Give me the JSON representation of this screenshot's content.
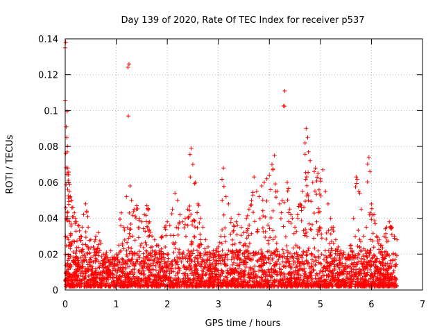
{
  "chart_data": {
    "type": "scatter",
    "title": "Day 139 of 2020, Rate Of TEC Index for receiver p537",
    "xlabel": "GPS time / hours",
    "ylabel": "ROTI / TECUs",
    "xlim": [
      0,
      7
    ],
    "ylim": [
      0,
      0.14
    ],
    "xticks": [
      0,
      1,
      2,
      3,
      4,
      5,
      6,
      7
    ],
    "yticks": [
      0,
      0.02,
      0.04,
      0.06,
      0.08,
      0.1,
      0.12,
      0.14
    ],
    "ytick_labels": [
      "0",
      "0.02",
      "0.04",
      "0.06",
      "0.08",
      "0.1",
      "0.12",
      "0.14"
    ],
    "grid": true,
    "marker": "+",
    "color": "#ff0000",
    "series": [
      {
        "name": "ROTI",
        "x": [
          0.0,
          0.01,
          0.02,
          0.03,
          0.04,
          0.05,
          0.06,
          0.08,
          0.1,
          0.12,
          0.15,
          0.18,
          0.2,
          0.22,
          0.25,
          0.28,
          0.3,
          0.33,
          0.36,
          0.4,
          0.42,
          0.45,
          0.5,
          0.55,
          0.6,
          0.65,
          0.7,
          0.75,
          0.8,
          0.85,
          0.9,
          0.95,
          1.0,
          1.05,
          1.1,
          1.15,
          1.2,
          1.25,
          1.27,
          1.3,
          1.35,
          1.4,
          1.45,
          1.5,
          1.55,
          1.6,
          1.65,
          1.7,
          1.75,
          1.8,
          1.85,
          1.9,
          1.95,
          2.0,
          2.05,
          2.1,
          2.15,
          2.2,
          2.25,
          2.3,
          2.35,
          2.4,
          2.45,
          2.47,
          2.5,
          2.55,
          2.6,
          2.65,
          2.7,
          2.75,
          2.8,
          2.85,
          2.9,
          2.95,
          3.0,
          3.05,
          3.1,
          3.15,
          3.2,
          3.25,
          3.3,
          3.35,
          3.4,
          3.45,
          3.5,
          3.55,
          3.6,
          3.65,
          3.7,
          3.75,
          3.8,
          3.85,
          3.9,
          3.95,
          4.0,
          4.05,
          4.1,
          4.15,
          4.2,
          4.25,
          4.3,
          4.35,
          4.4,
          4.45,
          4.5,
          4.55,
          4.6,
          4.65,
          4.7,
          4.72,
          4.75,
          4.8,
          4.85,
          4.9,
          4.95,
          5.0,
          5.05,
          5.1,
          5.15,
          5.2,
          5.25,
          5.3,
          5.35,
          5.4,
          5.45,
          5.5,
          5.55,
          5.6,
          5.65,
          5.7,
          5.75,
          5.8,
          5.85,
          5.9,
          5.95,
          5.97,
          6.0,
          6.05,
          6.1,
          6.15,
          6.2,
          6.25,
          6.3,
          6.35,
          6.4,
          6.45,
          6.5
        ],
        "y": [
          0.135,
          0.138,
          0.091,
          0.085,
          0.077,
          0.068,
          0.06,
          0.055,
          0.052,
          0.05,
          0.046,
          0.043,
          0.04,
          0.038,
          0.036,
          0.033,
          0.03,
          0.035,
          0.042,
          0.048,
          0.044,
          0.035,
          0.028,
          0.024,
          0.03,
          0.032,
          0.026,
          0.02,
          0.018,
          0.016,
          0.015,
          0.018,
          0.02,
          0.025,
          0.043,
          0.035,
          0.052,
          0.126,
          0.058,
          0.05,
          0.045,
          0.047,
          0.04,
          0.038,
          0.042,
          0.047,
          0.038,
          0.03,
          0.028,
          0.025,
          0.022,
          0.03,
          0.035,
          0.038,
          0.036,
          0.045,
          0.054,
          0.05,
          0.042,
          0.038,
          0.04,
          0.045,
          0.063,
          0.079,
          0.07,
          0.06,
          0.048,
          0.04,
          0.035,
          0.028,
          0.024,
          0.02,
          0.018,
          0.022,
          0.024,
          0.03,
          0.068,
          0.052,
          0.048,
          0.04,
          0.036,
          0.038,
          0.042,
          0.035,
          0.032,
          0.04,
          0.045,
          0.05,
          0.063,
          0.055,
          0.052,
          0.058,
          0.06,
          0.062,
          0.064,
          0.07,
          0.075,
          0.055,
          0.048,
          0.05,
          0.111,
          0.06,
          0.045,
          0.04,
          0.035,
          0.042,
          0.048,
          0.055,
          0.082,
          0.09,
          0.085,
          0.072,
          0.06,
          0.068,
          0.065,
          0.062,
          0.067,
          0.055,
          0.048,
          0.04,
          0.035,
          0.028,
          0.024,
          0.022,
          0.02,
          0.018,
          0.02,
          0.025,
          0.04,
          0.063,
          0.055,
          0.045,
          0.03,
          0.035,
          0.074,
          0.066,
          0.048,
          0.042,
          0.03,
          0.028,
          0.025,
          0.03,
          0.035,
          0.038,
          0.035,
          0.03,
          0.028
        ]
      }
    ]
  }
}
